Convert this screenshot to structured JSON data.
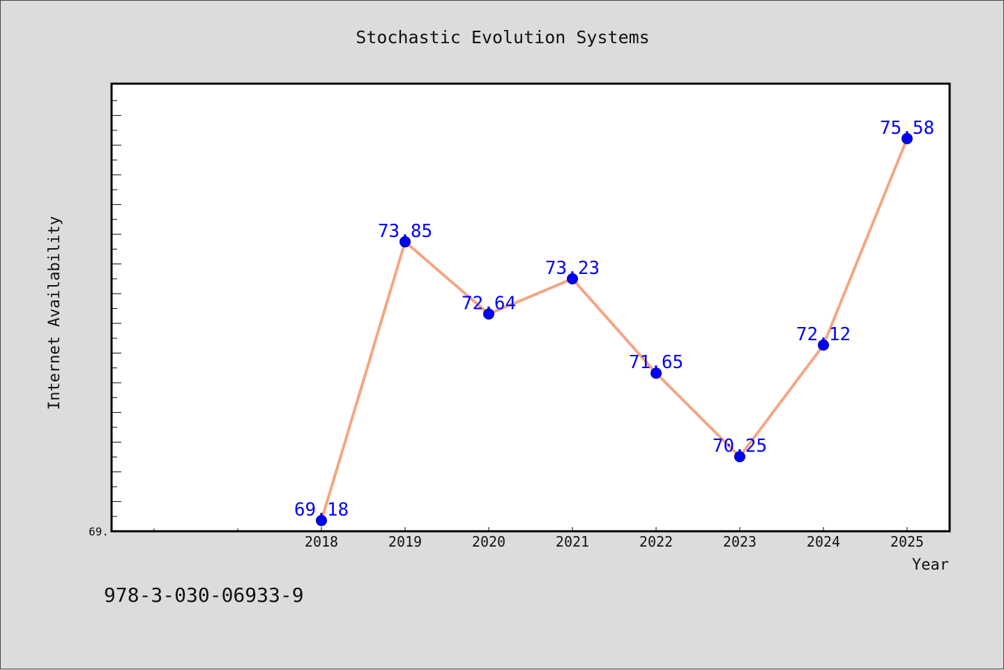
{
  "chart_data": {
    "type": "line",
    "title": "Stochastic Evolution Systems",
    "xlabel": "Year",
    "ylabel": "Internet Availability",
    "x": [
      "2018",
      "2019",
      "2020",
      "2021",
      "2022",
      "2023",
      "2024",
      "2025"
    ],
    "series": [
      {
        "values": [
          69.18,
          73.85,
          72.64,
          73.23,
          71.65,
          70.25,
          72.12,
          75.58
        ],
        "data_labels": [
          "69.18",
          "73.85",
          "72.64",
          "73.23",
          "71.65",
          "70.25",
          "72.12",
          "75.58"
        ]
      }
    ],
    "ylim": [
      69.0,
      76.5
    ],
    "y_tick_labels": [
      "69."
    ],
    "grid": false,
    "legend": "none",
    "colors": {
      "line": "#f4a582",
      "marker": "#0000ff",
      "data_label": "#0000ff",
      "plot_background": "#ffffff",
      "page_background": "#dcdcdc"
    }
  },
  "footer": {
    "isbn": "978-3-030-06933-9"
  }
}
